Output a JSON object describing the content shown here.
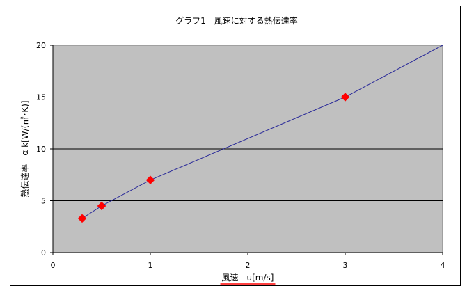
{
  "chart_data": {
    "type": "scatter",
    "title": "グラフ1　風速に対する熱伝達率",
    "xlabel": "風速　u[m/s]",
    "ylabel": "熱伝達率　α k[W/(㎡･K)]",
    "xlim": [
      0,
      4
    ],
    "ylim": [
      0,
      20
    ],
    "x_ticks": [
      "0",
      "1",
      "2",
      "3",
      "4"
    ],
    "y_ticks": [
      "0",
      "5",
      "10",
      "15",
      "20"
    ],
    "grid": "horizontal",
    "legend": "none",
    "series": [
      {
        "points": [
          {
            "x": 0.3,
            "y": 3.3
          },
          {
            "x": 0.5,
            "y": 4.5
          },
          {
            "x": 1.0,
            "y": 7.0
          },
          {
            "x": 3.0,
            "y": 15.0
          }
        ],
        "marker": "diamond",
        "color": "#ff0000"
      }
    ],
    "trendline": {
      "points": [
        {
          "x": 0.3,
          "y": 3.3
        },
        {
          "x": 0.5,
          "y": 4.5
        },
        {
          "x": 1.0,
          "y": 7.0
        },
        {
          "x": 3.0,
          "y": 15.0
        },
        {
          "x": 4.0,
          "y": 20.0
        }
      ],
      "color": "#2b2b99"
    },
    "plot_background": "#c0c0c0",
    "xlabel_underline_color": "#ff0000"
  }
}
